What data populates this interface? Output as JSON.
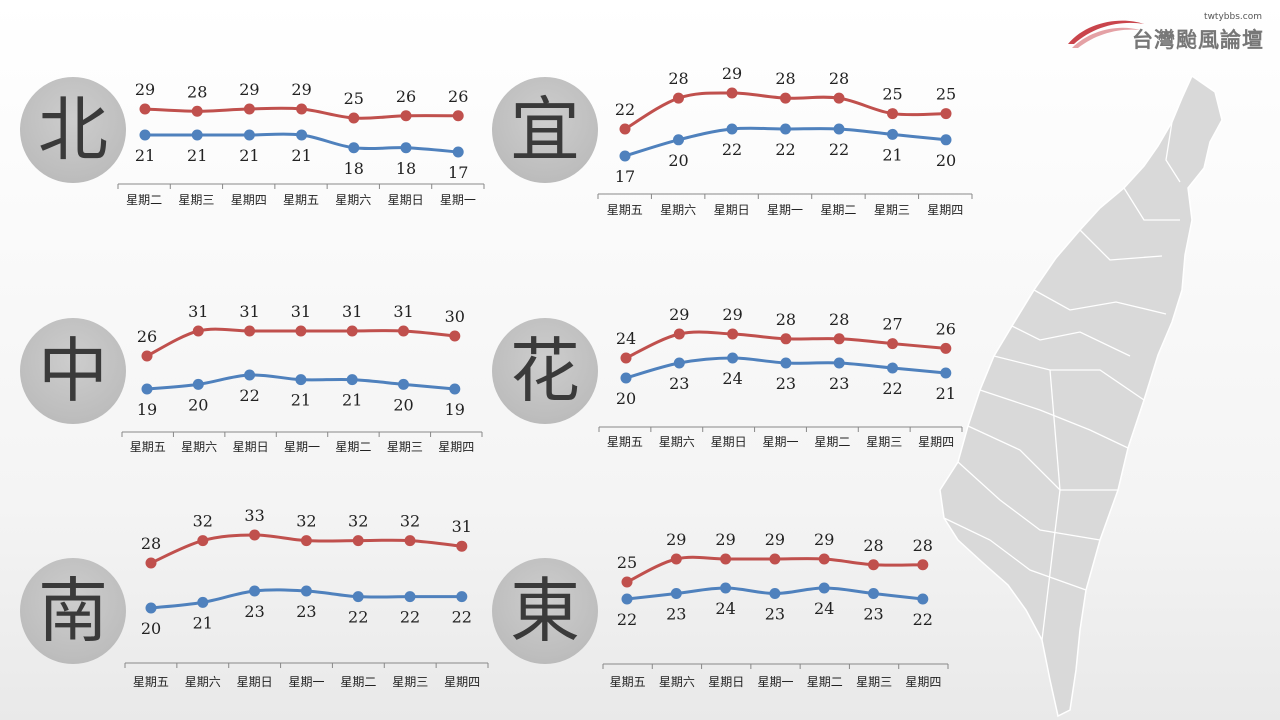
{
  "logo": {
    "url": "twtybbs.com",
    "name": "台灣颱風論壇",
    "swoosh_color": "#c9444b"
  },
  "colors": {
    "high": "#c0504d",
    "low": "#4f81bd",
    "axis": "#888888",
    "circle": "#bdbdbd",
    "map": "#d9d9d9"
  },
  "chart_data": [
    {
      "type": "line",
      "region": "北",
      "categories": [
        "星期二",
        "星期三",
        "星期四",
        "星期五",
        "星期六",
        "星期日",
        "星期一"
      ],
      "series": [
        {
          "values": [
            29,
            28,
            29,
            29,
            25,
            26,
            26
          ]
        },
        {
          "values": [
            21,
            21,
            21,
            21,
            18,
            18,
            17
          ]
        }
      ]
    },
    {
      "type": "line",
      "region": "宜",
      "categories": [
        "星期五",
        "星期六",
        "星期日",
        "星期一",
        "星期二",
        "星期三",
        "星期四"
      ],
      "series": [
        {
          "values": [
            22,
            28,
            29,
            28,
            28,
            25,
            25
          ]
        },
        {
          "values": [
            17,
            20,
            22,
            22,
            22,
            21,
            20
          ]
        }
      ]
    },
    {
      "type": "line",
      "region": "中",
      "categories": [
        "星期五",
        "星期六",
        "星期日",
        "星期一",
        "星期二",
        "星期三",
        "星期四"
      ],
      "series": [
        {
          "values": [
            26,
            31,
            31,
            31,
            31,
            31,
            30
          ]
        },
        {
          "values": [
            19,
            20,
            22,
            21,
            21,
            20,
            19
          ]
        }
      ]
    },
    {
      "type": "line",
      "region": "花",
      "categories": [
        "星期五",
        "星期六",
        "星期日",
        "星期一",
        "星期二",
        "星期三",
        "星期四"
      ],
      "series": [
        {
          "values": [
            24,
            29,
            29,
            28,
            28,
            27,
            26
          ]
        },
        {
          "values": [
            20,
            23,
            24,
            23,
            23,
            22,
            21
          ]
        }
      ]
    },
    {
      "type": "line",
      "region": "南",
      "categories": [
        "星期五",
        "星期六",
        "星期日",
        "星期一",
        "星期二",
        "星期三",
        "星期四"
      ],
      "series": [
        {
          "values": [
            28,
            32,
            33,
            32,
            32,
            32,
            31
          ]
        },
        {
          "values": [
            20,
            21,
            23,
            23,
            22,
            22,
            22
          ]
        }
      ]
    },
    {
      "type": "line",
      "region": "東",
      "categories": [
        "星期五",
        "星期六",
        "星期日",
        "星期一",
        "星期二",
        "星期三",
        "星期四"
      ],
      "series": [
        {
          "values": [
            25,
            29,
            29,
            29,
            29,
            28,
            28
          ]
        },
        {
          "values": [
            22,
            23,
            24,
            23,
            24,
            23,
            22
          ]
        }
      ]
    }
  ]
}
